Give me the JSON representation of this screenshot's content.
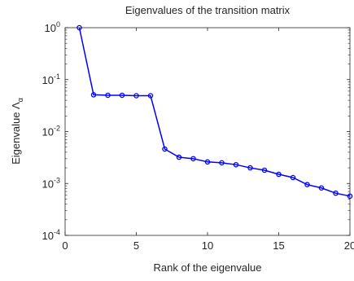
{
  "chart_data": {
    "type": "line",
    "title": "Eigenvalues of the transition matrix",
    "xlabel": "Rank of the eigenvalue",
    "ylabel": "Eigenvalue Λ",
    "ylabel_subscript": "α",
    "x_scale": "linear",
    "y_scale": "log",
    "xlim": [
      0,
      20
    ],
    "ylim": [
      0.0001,
      1
    ],
    "x_ticks": [
      0,
      5,
      10,
      15,
      20
    ],
    "y_ticks": [
      {
        "value": 0.0001,
        "base": "10",
        "exp": "-4"
      },
      {
        "value": 0.001,
        "base": "10",
        "exp": "-3"
      },
      {
        "value": 0.01,
        "base": "10",
        "exp": "-2"
      },
      {
        "value": 0.1,
        "base": "10",
        "exp": "-1"
      },
      {
        "value": 1,
        "base": "10",
        "exp": "0"
      }
    ],
    "grid": false,
    "legend": "none",
    "series": [
      {
        "color": "#0000ff",
        "marker": "circle",
        "x": [
          1,
          2,
          3,
          4,
          5,
          6,
          7,
          8,
          9,
          10,
          11,
          12,
          13,
          14,
          15,
          16,
          17,
          18,
          19,
          20
        ],
        "y": [
          1.0,
          0.051,
          0.05,
          0.05,
          0.049,
          0.049,
          0.0046,
          0.0032,
          0.003,
          0.0026,
          0.0025,
          0.0023,
          0.002,
          0.0018,
          0.0015,
          0.0013,
          0.00095,
          0.00082,
          0.00065,
          0.00057
        ]
      }
    ]
  }
}
